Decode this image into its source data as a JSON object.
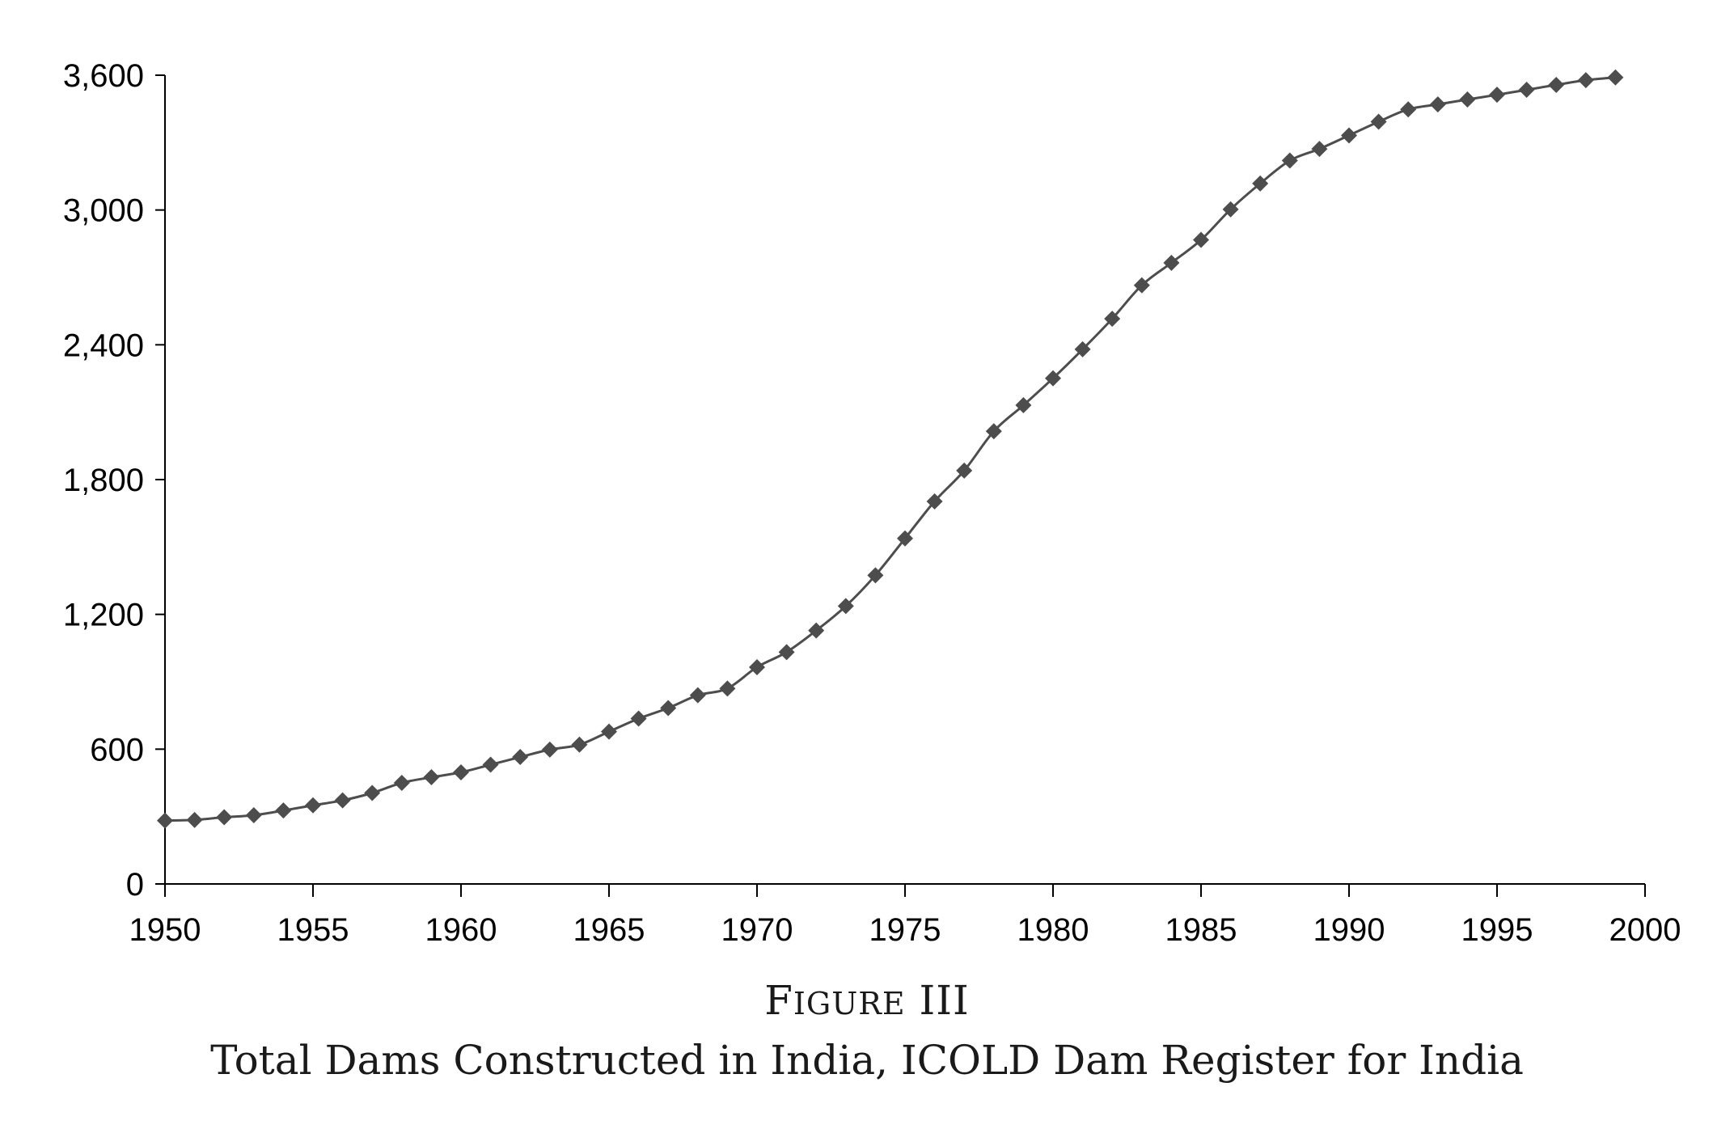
{
  "figure": {
    "label": "Figure III",
    "label_initial": "F",
    "label_rest": "IGURE",
    "label_numeral": "III",
    "caption": "Total Dams Constructed in India, ICOLD Dam Register for India"
  },
  "colors": {
    "series": "#4d4d4d",
    "axis": "#000000",
    "text": "#000000"
  },
  "chart_data": {
    "type": "line",
    "title": "",
    "xlabel": "",
    "ylabel": "",
    "xlim": [
      1950,
      2000
    ],
    "ylim": [
      0,
      3600
    ],
    "x_ticks": [
      1950,
      1955,
      1960,
      1965,
      1970,
      1975,
      1980,
      1985,
      1990,
      1995,
      2000
    ],
    "y_ticks": [
      0,
      600,
      1200,
      1800,
      2400,
      3000,
      3600
    ],
    "x_tick_labels": [
      "1950",
      "1955",
      "1960",
      "1965",
      "1970",
      "1975",
      "1980",
      "1985",
      "1990",
      "1995",
      "2000"
    ],
    "y_tick_labels": [
      "0",
      "600",
      "1,200",
      "1,800",
      "2,400",
      "3,000",
      "3,600"
    ],
    "grid": false,
    "legend": "none",
    "marker": "diamond",
    "series": [
      {
        "x": [
          1950,
          1951,
          1952,
          1953,
          1954,
          1955,
          1956,
          1957,
          1958,
          1959,
          1960,
          1961,
          1962,
          1963,
          1964,
          1965,
          1966,
          1967,
          1968,
          1969,
          1970,
          1971,
          1972,
          1973,
          1974,
          1975,
          1976,
          1977,
          1978,
          1979,
          1980,
          1981,
          1982,
          1983,
          1984,
          1985,
          1986,
          1987,
          1988,
          1989,
          1990,
          1991,
          1992,
          1993,
          1994,
          1995,
          1996,
          1997,
          1998,
          1999
        ],
        "y": [
          282,
          285,
          297,
          306,
          327,
          350,
          372,
          405,
          450,
          475,
          497,
          531,
          565,
          598,
          620,
          678,
          736,
          783,
          840,
          870,
          965,
          1032,
          1128,
          1237,
          1374,
          1538,
          1703,
          1840,
          2015,
          2131,
          2251,
          2380,
          2516,
          2665,
          2765,
          2867,
          3003,
          3118,
          3220,
          3272,
          3332,
          3393,
          3448,
          3470,
          3492,
          3513,
          3535,
          3557,
          3578,
          3590
        ]
      }
    ]
  }
}
